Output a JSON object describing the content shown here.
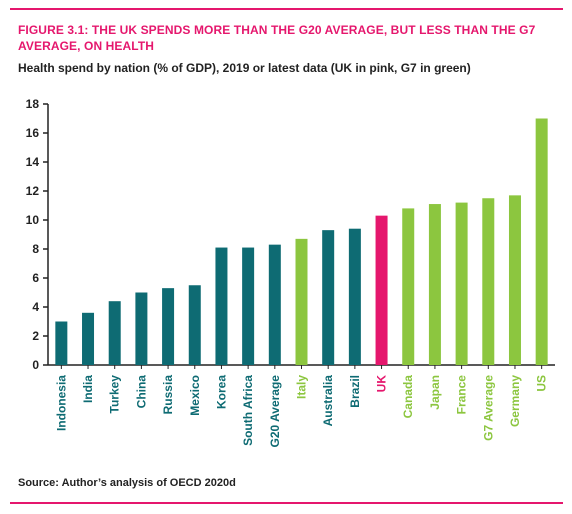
{
  "figure": {
    "title": "FIGURE 3.1: THE UK SPENDS MORE THAN THE G20 AVERAGE, BUT LESS THAN THE G7 AVERAGE, ON HEALTH",
    "subtitle": "Health spend by nation (% of GDP), 2019 or latest data (UK in pink, G7 in green)",
    "source": "Source: Author’s analysis of OECD 2020d"
  },
  "colors": {
    "accent": "#e5176d",
    "g20": "#0e6b73",
    "g7": "#8cc63f",
    "uk": "#e5176d",
    "axis": "#222222"
  },
  "chart_data": {
    "type": "bar",
    "title": "FIGURE 3.1: THE UK SPENDS MORE THAN THE G20 AVERAGE, BUT LESS THAN THE G7 AVERAGE, ON HEALTH",
    "subtitle": "Health spend by nation (% of GDP), 2019 or latest data (UK in pink, G7 in green)",
    "xlabel": "",
    "ylabel": "",
    "ylim": [
      0,
      18
    ],
    "yticks": [
      0,
      2,
      4,
      6,
      8,
      10,
      12,
      14,
      16,
      18
    ],
    "grid": false,
    "categories": [
      "Indonesia",
      "India",
      "Turkey",
      "China",
      "Russia",
      "Mexico",
      "Korea",
      "South Africa",
      "G20 Average",
      "Italy",
      "Australia",
      "Brazil",
      "UK",
      "Canada",
      "Japan",
      "France",
      "G7 Average",
      "Germany",
      "US"
    ],
    "values": [
      3.0,
      3.6,
      4.4,
      5.0,
      5.3,
      5.5,
      8.1,
      8.1,
      8.3,
      8.7,
      9.3,
      9.4,
      10.3,
      10.8,
      11.1,
      11.2,
      11.5,
      11.7,
      17.0
    ],
    "groups": [
      "g20",
      "g20",
      "g20",
      "g20",
      "g20",
      "g20",
      "g20",
      "g20",
      "g20",
      "g7",
      "g20",
      "g20",
      "uk",
      "g7",
      "g7",
      "g7",
      "g7",
      "g7",
      "g7"
    ]
  }
}
